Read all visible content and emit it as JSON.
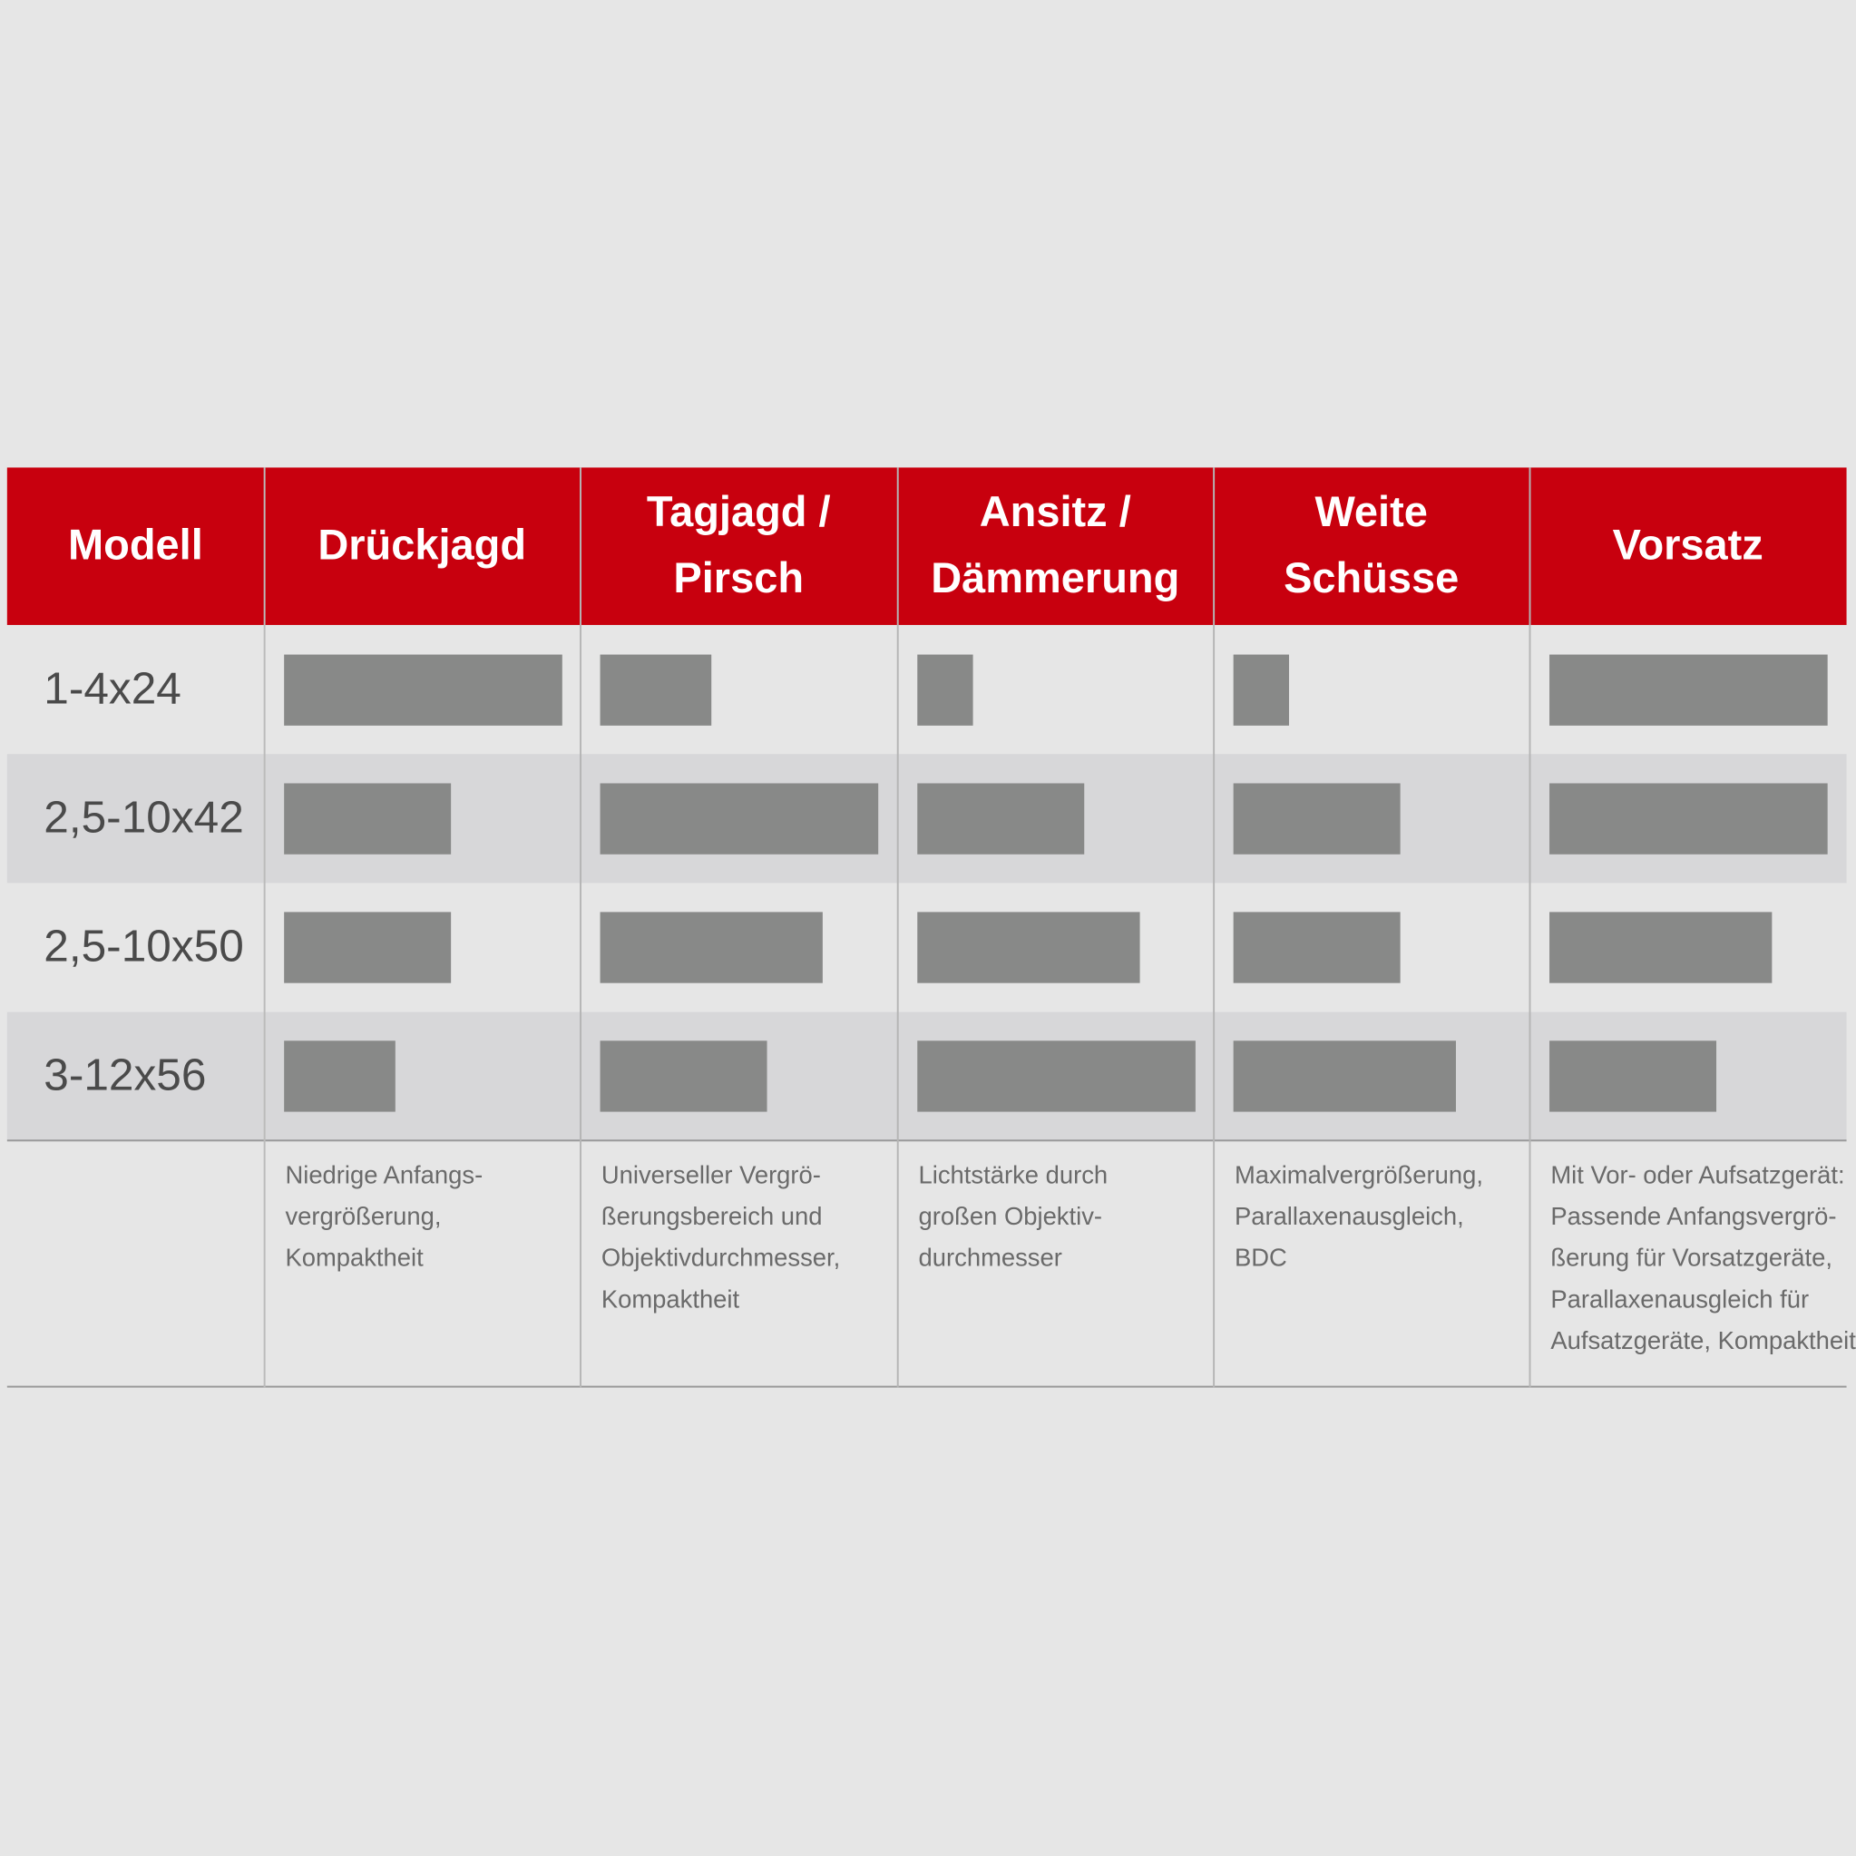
{
  "table": {
    "header": [
      [
        "Modell"
      ],
      [
        "Drückjagd"
      ],
      [
        "Tagjagd /",
        "Pirsch"
      ],
      [
        "Ansitz /",
        "Dämmerung"
      ],
      [
        "Weite",
        "Schüsse"
      ],
      [
        "Vorsatz"
      ]
    ],
    "rows": [
      {
        "model": "1-4x24",
        "ratings": [
          5,
          2,
          1,
          1,
          5
        ]
      },
      {
        "model": "2,5-10x42",
        "ratings": [
          3,
          5,
          3,
          3,
          5
        ]
      },
      {
        "model": "2,5-10x50",
        "ratings": [
          3,
          4,
          4,
          3,
          4
        ]
      },
      {
        "model": "3-12x56",
        "ratings": [
          2,
          3,
          5,
          4,
          3
        ]
      }
    ],
    "notes": [
      [
        "Niedrige Anfangs-",
        "vergrößerung,",
        "Kompaktheit"
      ],
      [
        "Universeller Vergrö-",
        "ßerungsbereich und",
        "Objektivdurchmesser,",
        "Kompaktheit"
      ],
      [
        "Lichtstärke durch",
        "großen Objektiv-",
        "durchmesser"
      ],
      [
        "Maximalvergrößerung,",
        "Parallaxenausgleich,",
        "BDC"
      ],
      [
        "Mit Vor- oder Aufsatzgerät:",
        "Passende Anfangsvergrö-",
        "ßerung für Vorsatzgeräte,",
        "Parallaxenausgleich für",
        "Aufsatzgeräte, Kompaktheit"
      ]
    ]
  }
}
